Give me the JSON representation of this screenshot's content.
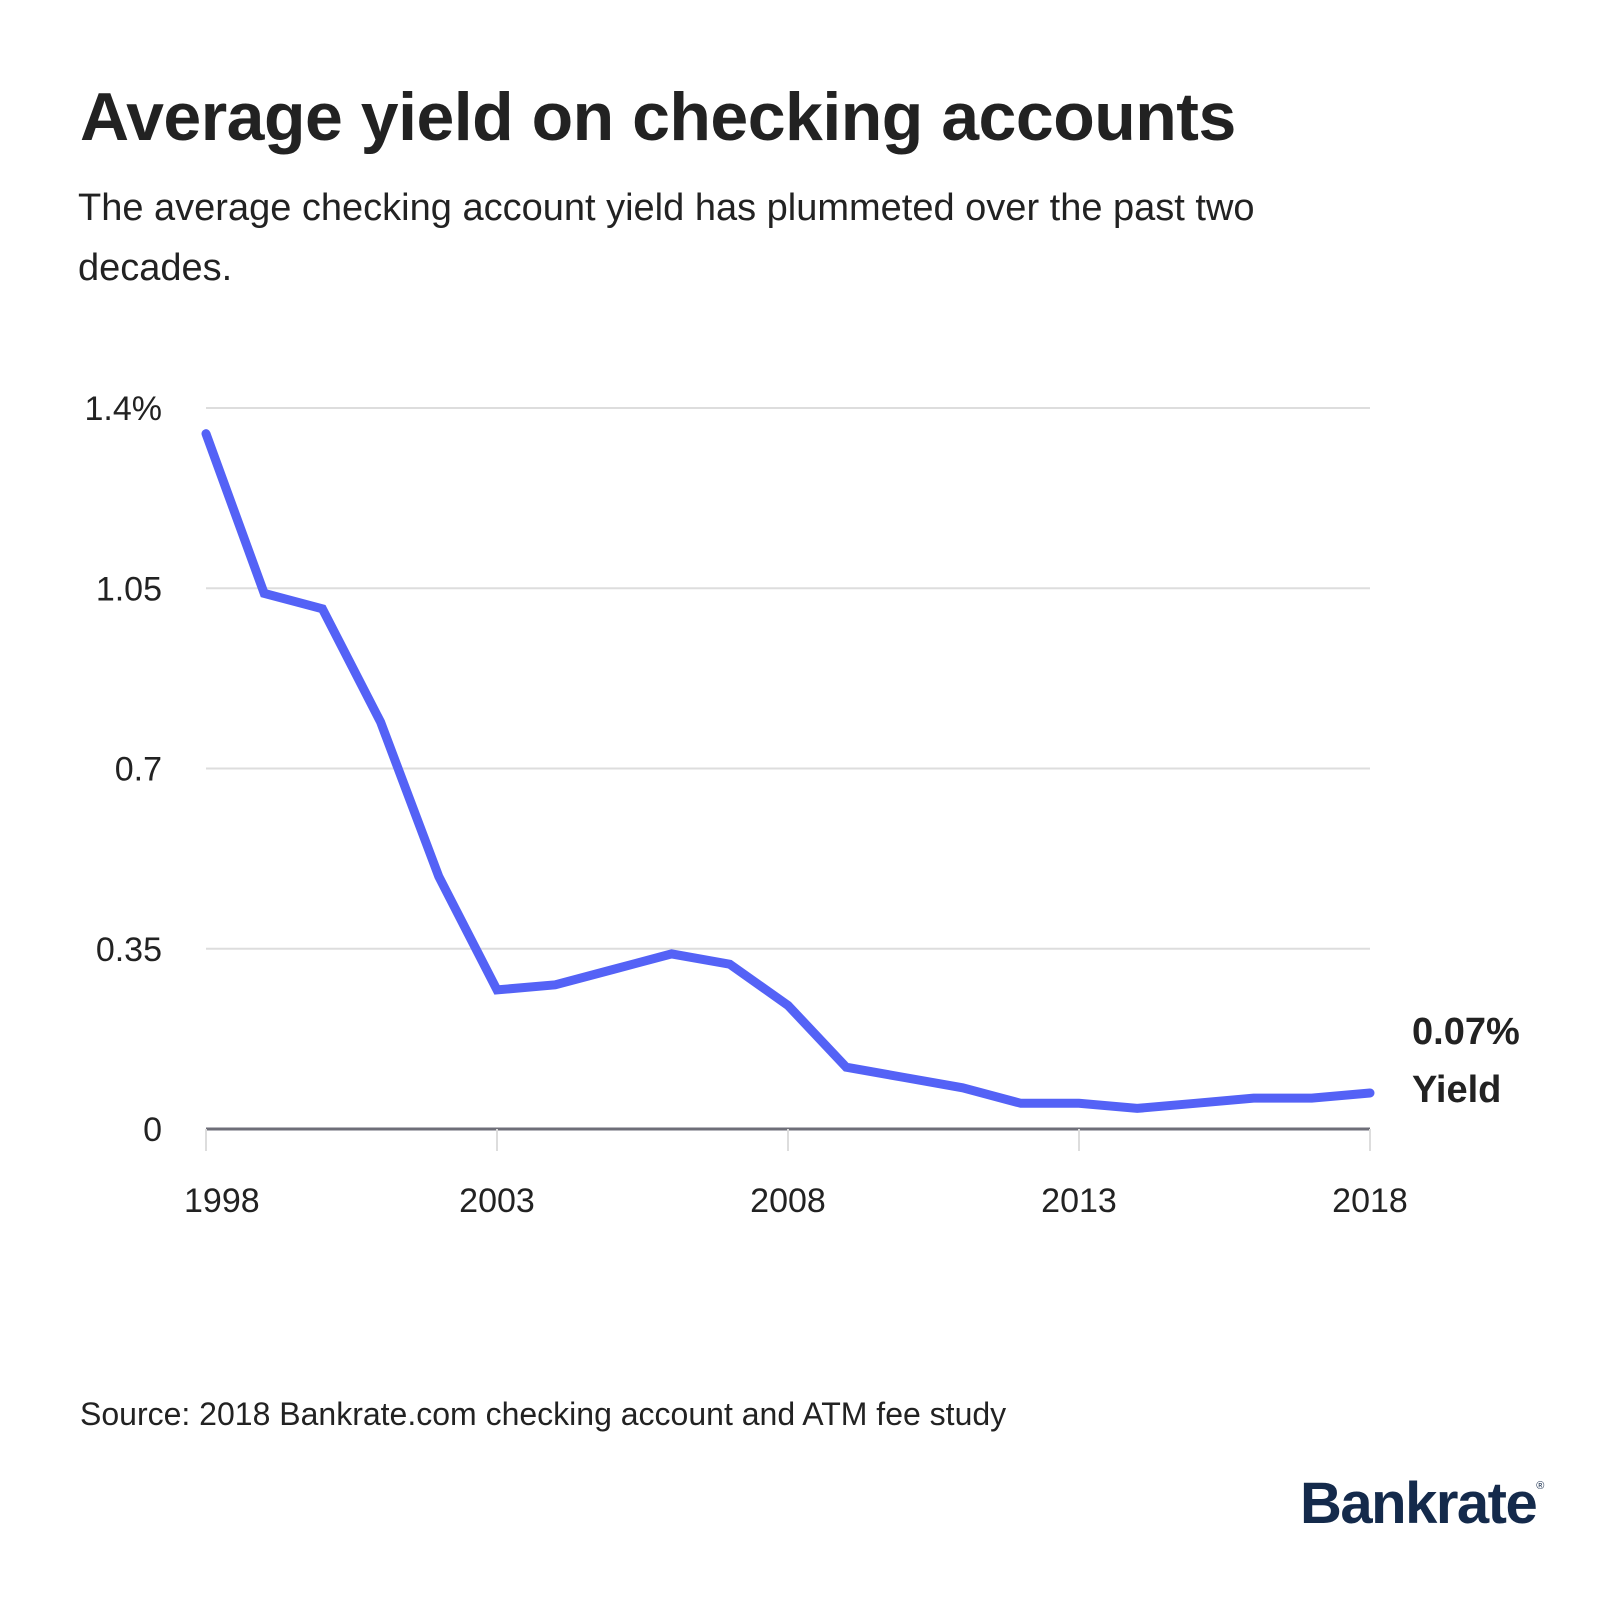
{
  "header": {
    "title": "Average yield on checking accounts",
    "subtitle": "The average checking account yield has plummeted over the past two decades."
  },
  "footer": {
    "source": "Source: 2018 Bankrate.com checking account and ATM fee study",
    "logo": "Bankrate",
    "logo_mark": "®"
  },
  "colors": {
    "line": "#5462F6",
    "grid": "#DDDDDD",
    "axis": "#6E6E78",
    "text": "#222222",
    "brand": "#142A4B"
  },
  "chart_data": {
    "type": "line",
    "x": [
      1998,
      1999,
      2000,
      2001,
      2002,
      2003,
      2004,
      2005,
      2006,
      2007,
      2008,
      2009,
      2010,
      2011,
      2012,
      2013,
      2014,
      2015,
      2016,
      2017,
      2018
    ],
    "series": [
      {
        "values": [
          1.35,
          1.04,
          1.01,
          0.79,
          0.49,
          0.27,
          0.28,
          0.31,
          0.34,
          0.32,
          0.24,
          0.12,
          0.1,
          0.08,
          0.05,
          0.05,
          0.04,
          0.05,
          0.06,
          0.06,
          0.07
        ]
      }
    ],
    "xlim": [
      1998,
      2018
    ],
    "ylim": [
      0,
      1.4
    ],
    "yticks": [
      0,
      0.35,
      0.7,
      1.05,
      1.4
    ],
    "ytick_labels": [
      "0",
      "0.35",
      "0.7",
      "1.05",
      "1.4%"
    ],
    "xticks": [
      1998,
      2003,
      2008,
      2013,
      2018
    ],
    "xtick_labels": [
      "1998",
      "2003",
      "2008",
      "2013",
      "2018"
    ],
    "grid": true,
    "annotation": {
      "value_label": "0.07%",
      "series_label": "Yield",
      "placement": "end-of-line-right"
    }
  }
}
